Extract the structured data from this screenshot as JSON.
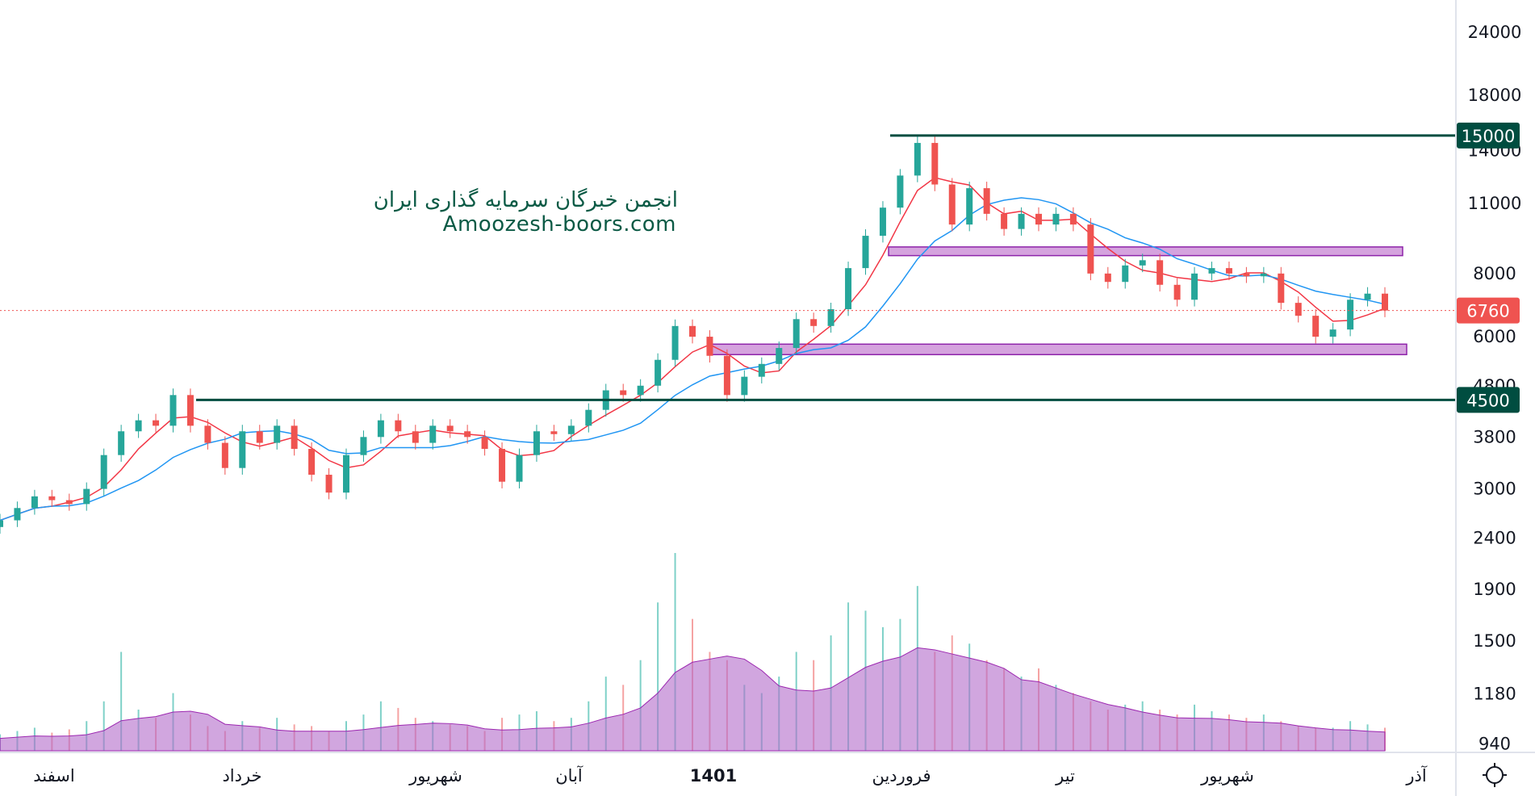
{
  "watermark": {
    "line1": "انجمن خبرگان سرمایه گذاری ایران",
    "line2": "Amoozesh-boors.com"
  },
  "chart_data": {
    "type": "candlestick",
    "scale": "log",
    "price_ticks": [
      24000,
      18000,
      14000,
      11000,
      8000,
      6000,
      4800,
      3800,
      3000,
      2400,
      1900,
      1500,
      1180,
      940
    ],
    "time_labels": [
      "اسفند",
      "خرداد",
      "شهریور",
      "آبان",
      "1401",
      "فروردین",
      "تیر",
      "شهریور",
      "آذر"
    ],
    "closes": [
      2600,
      2750,
      2900,
      2850,
      2800,
      3000,
      3500,
      3900,
      4100,
      4000,
      4600,
      4000,
      3700,
      3300,
      3900,
      3700,
      4000,
      3600,
      3200,
      2950,
      3500,
      3800,
      4100,
      3900,
      3700,
      4000,
      3900,
      3800,
      3600,
      3100,
      3500,
      3900,
      3850,
      4000,
      4300,
      4700,
      4600,
      4800,
      5400,
      6300,
      6000,
      5500,
      4600,
      5000,
      5300,
      5700,
      6500,
      6300,
      6800,
      8200,
      9500,
      10800,
      12500,
      14500,
      12000,
      10000,
      11800,
      10500,
      9800,
      10500,
      10000,
      10500,
      10000,
      8000,
      7700,
      8300,
      8500,
      7600,
      7100,
      8000,
      8200,
      8000,
      7900,
      8000,
      7000,
      6600,
      6000,
      6200,
      7100,
      7300,
      6760
    ],
    "volumes": [
      10,
      12,
      14,
      11,
      13,
      18,
      30,
      60,
      25,
      20,
      35,
      22,
      15,
      12,
      18,
      14,
      20,
      16,
      15,
      12,
      18,
      22,
      30,
      26,
      20,
      18,
      16,
      15,
      12,
      20,
      22,
      24,
      18,
      20,
      30,
      45,
      40,
      55,
      90,
      120,
      80,
      60,
      55,
      40,
      35,
      45,
      60,
      55,
      70,
      90,
      85,
      75,
      80,
      100,
      60,
      70,
      65,
      55,
      50,
      45,
      50,
      40,
      35,
      30,
      25,
      28,
      30,
      25,
      22,
      28,
      24,
      22,
      20,
      22,
      18,
      15,
      14,
      14,
      18,
      16,
      14
    ],
    "last_price": {
      "value": 6760,
      "label": "6760",
      "color": "#ef5350"
    },
    "levels": [
      {
        "value": 15000,
        "label": "15000",
        "color": "#004d40"
      },
      {
        "value": 4500,
        "label": "4500",
        "color": "#004d40"
      }
    ],
    "zones": [
      {
        "from": 8680,
        "to": 9030,
        "color": "#ce93d8"
      },
      {
        "from": 5530,
        "to": 5800,
        "color": "#ce93d8"
      }
    ],
    "colors": {
      "up": "#26a69a",
      "down": "#ef5350",
      "ma_fast": "#f23645",
      "ma_slow": "#2196f3",
      "volume_ma": "#b36bc9"
    }
  }
}
